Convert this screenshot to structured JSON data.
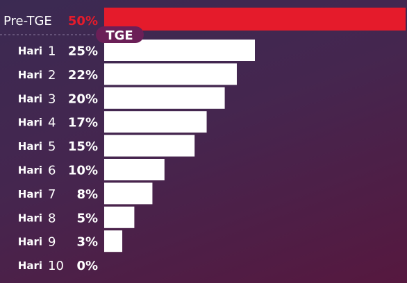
{
  "chart_data": {
    "type": "bar",
    "orientation": "horizontal",
    "pre_row": {
      "label": "Pre-TGE",
      "value": 50,
      "display": "50%"
    },
    "marker_label": "TGE",
    "rows": [
      {
        "word": "Hari",
        "num": "1",
        "value": 25,
        "display": "25%"
      },
      {
        "word": "Hari",
        "num": "2",
        "value": 22,
        "display": "22%"
      },
      {
        "word": "Hari",
        "num": "3",
        "value": 20,
        "display": "20%"
      },
      {
        "word": "Hari",
        "num": "4",
        "value": 17,
        "display": "17%"
      },
      {
        "word": "Hari",
        "num": "5",
        "value": 15,
        "display": "15%"
      },
      {
        "word": "Hari",
        "num": "6",
        "value": 10,
        "display": "10%"
      },
      {
        "word": "Hari",
        "num": "7",
        "value": 8,
        "display": "8%"
      },
      {
        "word": "Hari",
        "num": "8",
        "value": 5,
        "display": "5%"
      },
      {
        "word": "Hari",
        "num": "9",
        "value": 3,
        "display": "3%"
      },
      {
        "word": "Hari",
        "num": "10",
        "value": 0,
        "display": "0%"
      }
    ],
    "xlim": [
      0,
      50
    ],
    "colors": {
      "highlight": "#e51b2b",
      "bar": "#ffffff",
      "marker": "#6b1f57"
    }
  }
}
